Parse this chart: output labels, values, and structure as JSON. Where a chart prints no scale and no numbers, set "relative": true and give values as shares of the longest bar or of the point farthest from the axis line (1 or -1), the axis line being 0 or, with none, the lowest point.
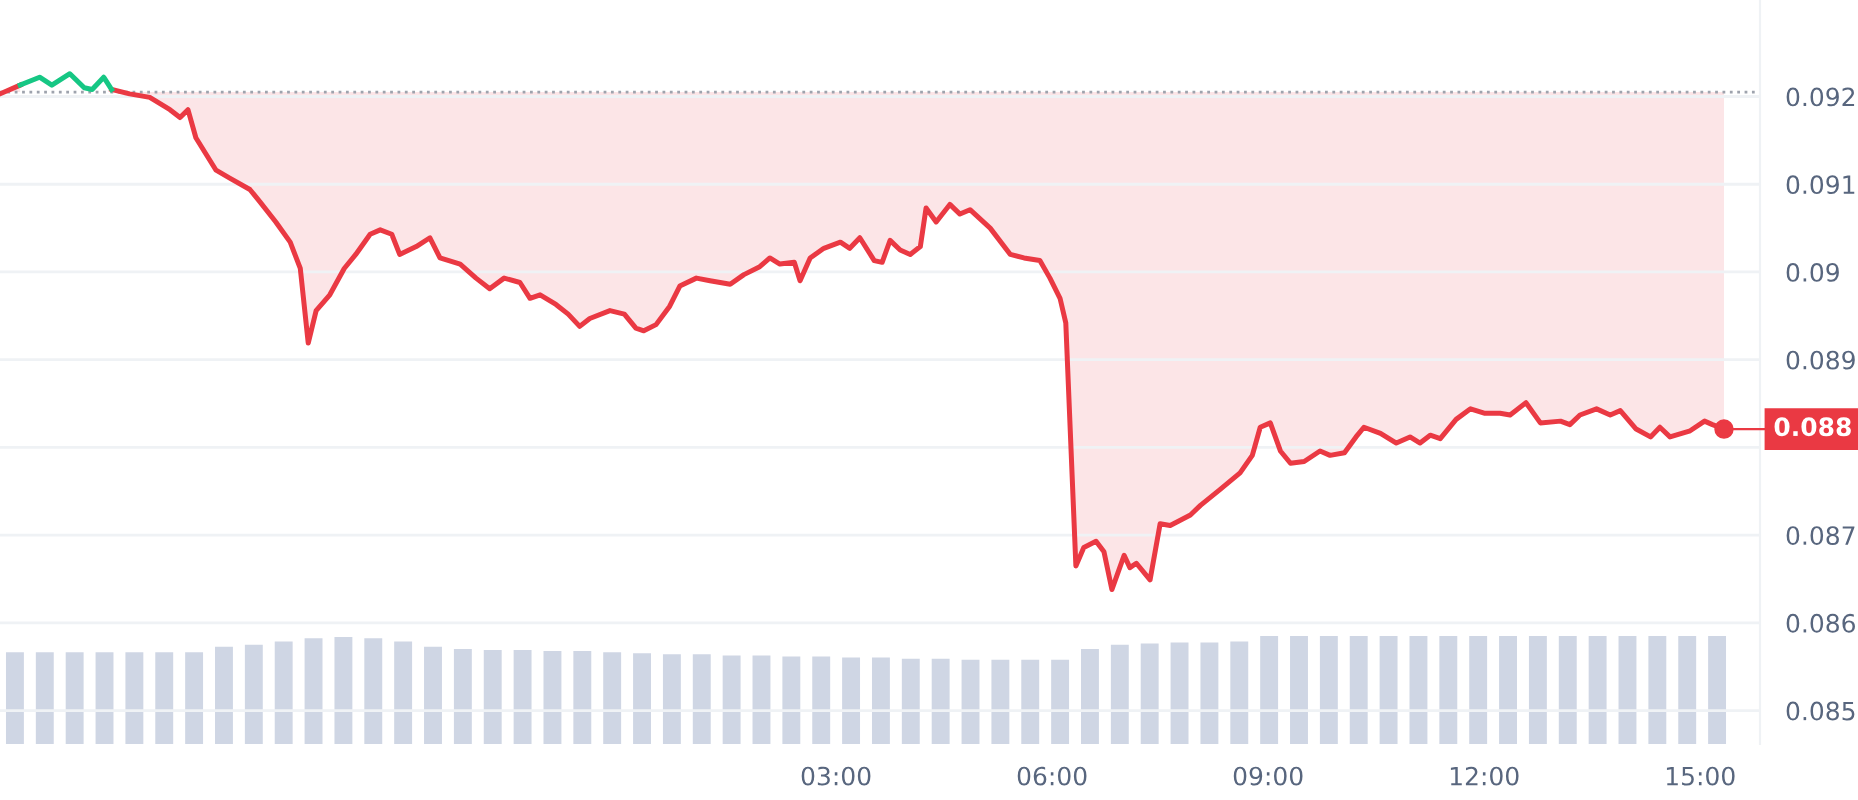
{
  "chart_data": [
    {
      "type": "line",
      "x": [
        -8.61,
        -8.33,
        -8.06,
        -7.89,
        -7.64,
        -7.44,
        -7.33,
        -7.17,
        -7.06,
        -6.81,
        -6.53,
        -6.25,
        -6.11,
        -6.0,
        -5.89,
        -5.61,
        -5.42,
        -5.14,
        -5.0,
        -4.78,
        -4.58,
        -4.44,
        -4.33,
        -4.22,
        -4.03,
        -3.83,
        -3.67,
        -3.47,
        -3.33,
        -3.17,
        -3.06,
        -2.83,
        -2.64,
        -2.5,
        -2.22,
        -2.0,
        -1.81,
        -1.61,
        -1.39,
        -1.25,
        -1.11,
        -0.89,
        -0.72,
        -0.56,
        -0.42,
        -0.14,
        0.06,
        0.22,
        0.33,
        0.5,
        0.69,
        0.83,
        1.06,
        1.25,
        1.53,
        1.72,
        1.94,
        2.08,
        2.22,
        2.42,
        2.5,
        2.64,
        2.83,
        3.06,
        3.19,
        3.33,
        3.53,
        3.64,
        3.75,
        3.89,
        4.03,
        4.17,
        4.25,
        4.39,
        4.58,
        4.72,
        4.86,
        5.14,
        5.42,
        5.61,
        5.83,
        5.97,
        6.11,
        6.19,
        6.33,
        6.44,
        6.61,
        6.72,
        6.83,
        7.0,
        7.08,
        7.17,
        7.36,
        7.5,
        7.64,
        7.92,
        8.06,
        8.33,
        8.61,
        8.78,
        8.89,
        9.03,
        9.17,
        9.31,
        9.5,
        9.72,
        9.86,
        10.06,
        10.22,
        10.33,
        10.56,
        10.78,
        10.97,
        11.11,
        11.25,
        11.39,
        11.61,
        11.81,
        12.0,
        12.22,
        12.36,
        12.58,
        12.78,
        13.06,
        13.19,
        13.33,
        13.56,
        13.75,
        13.89,
        14.11,
        14.31,
        14.44,
        14.58,
        14.86,
        15.06,
        15.17,
        15.33
      ],
      "series": [
        {
          "type": "line",
          "color": "#ea3943",
          "values": [
            0.09203,
            0.09213,
            null,
            null,
            null,
            null,
            null,
            null,
            0.09208,
            0.09203,
            0.09199,
            0.09185,
            0.09176,
            0.09185,
            0.09153,
            0.09116,
            0.09107,
            0.09094,
            0.0908,
            0.09057,
            0.09034,
            0.09004,
            0.08919,
            0.08956,
            0.08974,
            0.09004,
            0.0902,
            0.09043,
            0.09048,
            0.09043,
            0.0902,
            0.09029,
            0.09039,
            0.09016,
            0.09009,
            0.08993,
            0.08981,
            0.08993,
            0.08988,
            0.0897,
            0.08974,
            0.08963,
            0.08952,
            0.08938,
            0.08947,
            0.08956,
            0.08952,
            0.08936,
            0.08933,
            0.0894,
            0.08961,
            0.08984,
            0.08993,
            0.0899,
            0.08986,
            0.08997,
            0.09006,
            0.09016,
            0.09009,
            0.09011,
            0.0899,
            0.09016,
            0.09027,
            0.09034,
            0.09027,
            0.09039,
            0.09013,
            0.09011,
            0.09036,
            0.09025,
            0.0902,
            0.09029,
            0.09073,
            0.09057,
            0.09077,
            0.09066,
            0.09071,
            0.0905,
            0.0902,
            0.09016,
            0.09013,
            0.08993,
            0.0897,
            0.08942,
            0.08665,
            0.08686,
            0.08693,
            0.08681,
            0.08638,
            0.08677,
            0.08663,
            0.08668,
            0.08649,
            0.08713,
            0.08711,
            0.08723,
            0.08734,
            0.08752,
            0.08771,
            0.08791,
            0.08823,
            0.08828,
            0.08796,
            0.08782,
            0.08784,
            0.08796,
            0.08791,
            0.08794,
            0.08812,
            0.08823,
            0.08816,
            0.08805,
            0.08812,
            0.08805,
            0.08814,
            0.0881,
            0.08832,
            0.08844,
            0.08839,
            0.08839,
            0.08837,
            0.08851,
            0.08828,
            0.0883,
            0.08826,
            0.08837,
            0.08844,
            0.08837,
            0.08842,
            0.08821,
            0.08812,
            0.08823,
            0.08812,
            0.08819,
            0.0883,
            0.08826,
            0.08821
          ]
        },
        {
          "type": "line",
          "color": "#16c784",
          "values": [
            null,
            0.09213,
            0.09222,
            0.09213,
            0.09226,
            0.0921,
            0.09208,
            0.09222,
            0.09208,
            null,
            null,
            null,
            null,
            null,
            null,
            null,
            null,
            null,
            null,
            null,
            null,
            null,
            null,
            null,
            null,
            null,
            null,
            null,
            null,
            null,
            null,
            null,
            null,
            null,
            null,
            null,
            null,
            null,
            null,
            null,
            null,
            null,
            null,
            null,
            null,
            null,
            null,
            null,
            null,
            null,
            null,
            null,
            null,
            null,
            null,
            null,
            null,
            null,
            null,
            null,
            null,
            null,
            null,
            null,
            null,
            null,
            null,
            null,
            null,
            null,
            null,
            null,
            null,
            null,
            null,
            null,
            null,
            null,
            null,
            null,
            null,
            null,
            null,
            null,
            null,
            null,
            null,
            null,
            null,
            null,
            null,
            null,
            null,
            null,
            null,
            null,
            null,
            null,
            null,
            null,
            null,
            null,
            null,
            null,
            null,
            null,
            null,
            null,
            null,
            null,
            null,
            null,
            null,
            null,
            null,
            null,
            null,
            null,
            null,
            null,
            null,
            null,
            null,
            null,
            null,
            null,
            null,
            null,
            null,
            null,
            null,
            null,
            null,
            null,
            null,
            null,
            null
          ]
        }
      ],
      "xlim": [
        -8.61,
        15.83
      ],
      "ylim": [
        0.08462,
        0.0931
      ],
      "xticks": [
        {
          "value": 3,
          "label": "03:00"
        },
        {
          "value": 6,
          "label": "06:00"
        },
        {
          "value": 9,
          "label": "09:00"
        },
        {
          "value": 12,
          "label": "12:00"
        },
        {
          "value": 15,
          "label": "15:00"
        }
      ],
      "yticks": [
        0.085,
        0.086,
        0.087,
        {
          "value": 0.088,
          "label": null
        },
        0.089,
        0.09,
        0.091,
        0.092
      ],
      "ref_lines": [
        {
          "axis": "y",
          "value": 0.09205,
          "color": "#9ea3ad",
          "line_style": "dotted"
        }
      ],
      "annotations": [
        {
          "text": "0.088",
          "x": 15.33,
          "y": 0.08821
        }
      ],
      "grid": "y",
      "legend": false,
      "marker": "none",
      "line_style": "solid"
    },
    {
      "type": "bar",
      "relative": true,
      "color": "#cfd6e4",
      "categories": [
        null,
        null,
        null,
        null,
        null,
        null,
        null,
        null,
        null,
        null,
        null,
        null,
        null,
        null,
        null,
        null,
        null,
        null,
        null,
        null,
        null,
        null,
        null,
        null,
        null,
        null,
        null,
        null,
        null,
        null,
        null,
        null,
        null,
        null,
        null,
        null,
        null,
        null,
        null,
        null,
        null,
        null,
        null,
        null,
        null,
        null,
        null,
        null,
        null,
        null,
        null,
        null,
        null,
        null,
        null,
        null,
        null,
        null
      ],
      "values": [
        0.85,
        0.85,
        0.85,
        0.85,
        0.85,
        0.85,
        0.85,
        0.9,
        0.92,
        0.95,
        0.98,
        0.99,
        0.98,
        0.95,
        0.9,
        0.88,
        0.87,
        0.87,
        0.86,
        0.86,
        0.85,
        0.84,
        0.83,
        0.83,
        0.82,
        0.82,
        0.81,
        0.81,
        0.8,
        0.8,
        0.79,
        0.79,
        0.78,
        0.78,
        0.78,
        0.78,
        0.88,
        0.92,
        0.93,
        0.94,
        0.94,
        0.95,
        1.0,
        1.0,
        1.0,
        1.0,
        1.0,
        1.0,
        1.0,
        1.0,
        1.0,
        1.0,
        1.0,
        1.0,
        1.0,
        1.0,
        1.0,
        1.0
      ]
    }
  ]
}
